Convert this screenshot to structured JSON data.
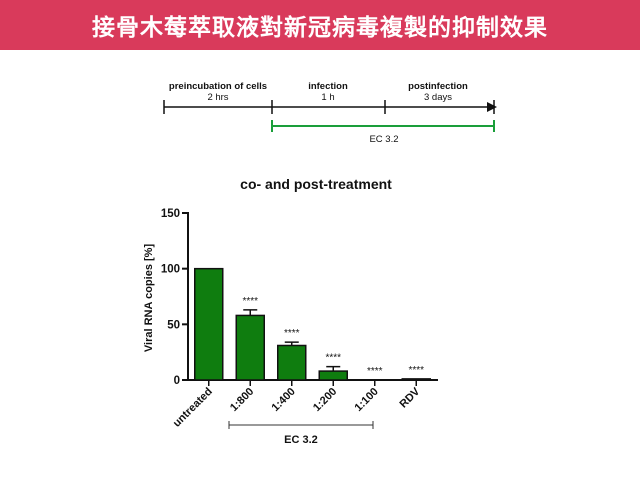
{
  "header": {
    "title": "接骨木莓萃取液對新冠病毒複製的抑制效果"
  },
  "timeline": {
    "phases": [
      {
        "name": "preincubation of cells",
        "duration": "2 hrs"
      },
      {
        "name": "infection",
        "duration": "1 h"
      },
      {
        "name": "postinfection",
        "duration": "3 days"
      }
    ],
    "treatment_label": "EC 3.2",
    "treatment_color": "#1a9e3a"
  },
  "chart_data": {
    "type": "bar",
    "title": "co- and post-treatment",
    "ylabel": "Viral RNA copies [%]",
    "xlabel": "",
    "ylim": [
      0,
      150
    ],
    "yticks": [
      0,
      50,
      100,
      150
    ],
    "categories": [
      "untreated",
      "1:800",
      "1:400",
      "1:200",
      "1:100",
      "RDV"
    ],
    "values": [
      100,
      58,
      31,
      8,
      0,
      1
    ],
    "errors": [
      0,
      5,
      3,
      4,
      0,
      0
    ],
    "significance": [
      "",
      "****",
      "****",
      "****",
      "****",
      "****"
    ],
    "bar_color": "#0f7d0f",
    "group_bracket": {
      "label": "EC 3.2",
      "from": "1:800",
      "to": "1:100"
    },
    "grid": false
  }
}
